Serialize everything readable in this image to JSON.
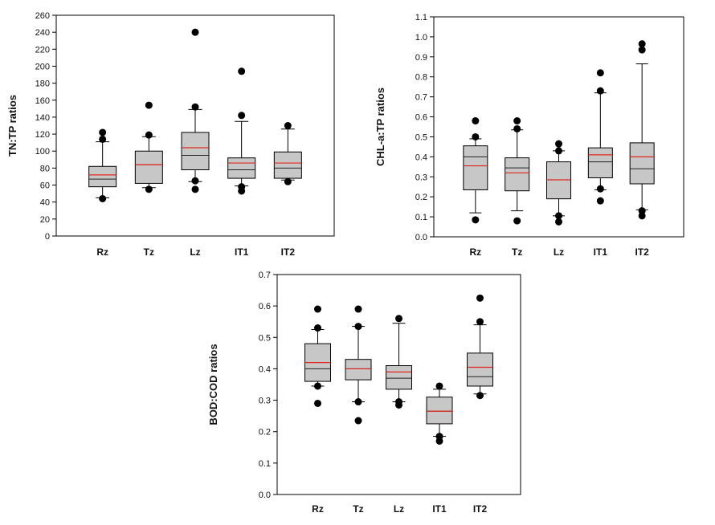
{
  "chart_data": [
    {
      "id": "tn_tp",
      "type": "box",
      "title": "",
      "xlabel": "",
      "ylabel": "TN:TP ratios",
      "ylim": [
        0,
        260
      ],
      "yticks": [
        0,
        20,
        40,
        60,
        80,
        100,
        120,
        140,
        160,
        180,
        200,
        220,
        240,
        260
      ],
      "tick_decimals": 0,
      "categories": [
        "Rz",
        "Tz",
        "Lz",
        "IT1",
        "IT2"
      ],
      "boxes": [
        {
          "q1": 58,
          "median": 67,
          "mean": 72,
          "q3": 82,
          "whisker_low": 45,
          "whisker_high": 111,
          "outliers": [
            44,
            114,
            122
          ]
        },
        {
          "q1": 62,
          "median": 84,
          "mean": 84,
          "q3": 100,
          "whisker_low": 57,
          "whisker_high": 117,
          "outliers": [
            55,
            119,
            154
          ]
        },
        {
          "q1": 78,
          "median": 95,
          "mean": 104,
          "q3": 122,
          "whisker_low": 64,
          "whisker_high": 149,
          "outliers": [
            55,
            65,
            152,
            240
          ]
        },
        {
          "q1": 68,
          "median": 78,
          "mean": 86,
          "q3": 92,
          "whisker_low": 59,
          "whisker_high": 135,
          "outliers": [
            53,
            58,
            142,
            194
          ]
        },
        {
          "q1": 68,
          "median": 80,
          "mean": 86,
          "q3": 99,
          "whisker_low": 66,
          "whisker_high": 126,
          "outliers": [
            64,
            130
          ]
        }
      ]
    },
    {
      "id": "chla_tp",
      "type": "box",
      "title": "",
      "xlabel": "",
      "ylabel": "CHL-a:TP ratios",
      "ylim": [
        0,
        1.1
      ],
      "yticks": [
        0.0,
        0.1,
        0.2,
        0.3,
        0.4,
        0.5,
        0.6,
        0.7,
        0.8,
        0.9,
        1.0,
        1.1
      ],
      "tick_decimals": 1,
      "categories": [
        "Rz",
        "Tz",
        "Lz",
        "IT1",
        "IT2"
      ],
      "boxes": [
        {
          "q1": 0.235,
          "median": 0.4,
          "mean": 0.355,
          "q3": 0.455,
          "whisker_low": 0.12,
          "whisker_high": 0.49,
          "outliers": [
            0.085,
            0.5,
            0.58
          ]
        },
        {
          "q1": 0.23,
          "median": 0.345,
          "mean": 0.32,
          "q3": 0.395,
          "whisker_low": 0.13,
          "whisker_high": 0.535,
          "outliers": [
            0.08,
            0.54,
            0.58
          ]
        },
        {
          "q1": 0.19,
          "median": 0.285,
          "mean": 0.285,
          "q3": 0.375,
          "whisker_low": 0.105,
          "whisker_high": 0.43,
          "outliers": [
            0.075,
            0.105,
            0.43,
            0.465
          ]
        },
        {
          "q1": 0.295,
          "median": 0.375,
          "mean": 0.41,
          "q3": 0.445,
          "whisker_low": 0.235,
          "whisker_high": 0.72,
          "outliers": [
            0.18,
            0.24,
            0.73,
            0.82
          ]
        },
        {
          "q1": 0.265,
          "median": 0.34,
          "mean": 0.4,
          "q3": 0.47,
          "whisker_low": 0.135,
          "whisker_high": 0.865,
          "outliers": [
            0.105,
            0.13,
            0.935,
            0.965
          ]
        }
      ]
    },
    {
      "id": "bod_cod",
      "type": "box",
      "title": "",
      "xlabel": "",
      "ylabel": "BOD:COD ratios",
      "ylim": [
        0,
        0.7
      ],
      "yticks": [
        0.0,
        0.1,
        0.2,
        0.3,
        0.4,
        0.5,
        0.6,
        0.7
      ],
      "tick_decimals": 1,
      "categories": [
        "Rz",
        "Tz",
        "Lz",
        "IT1",
        "IT2"
      ],
      "boxes": [
        {
          "q1": 0.36,
          "median": 0.4,
          "mean": 0.42,
          "q3": 0.48,
          "whisker_low": 0.345,
          "whisker_high": 0.525,
          "outliers": [
            0.29,
            0.345,
            0.53,
            0.59
          ]
        },
        {
          "q1": 0.365,
          "median": 0.4,
          "mean": 0.4,
          "q3": 0.43,
          "whisker_low": 0.295,
          "whisker_high": 0.535,
          "outliers": [
            0.235,
            0.295,
            0.535,
            0.59
          ]
        },
        {
          "q1": 0.335,
          "median": 0.37,
          "mean": 0.39,
          "q3": 0.41,
          "whisker_low": 0.295,
          "whisker_high": 0.545,
          "outliers": [
            0.285,
            0.295,
            0.56
          ]
        },
        {
          "q1": 0.225,
          "median": 0.265,
          "mean": 0.265,
          "q3": 0.31,
          "whisker_low": 0.185,
          "whisker_high": 0.335,
          "outliers": [
            0.17,
            0.185,
            0.345
          ]
        },
        {
          "q1": 0.345,
          "median": 0.375,
          "mean": 0.405,
          "q3": 0.45,
          "whisker_low": 0.32,
          "whisker_high": 0.54,
          "outliers": [
            0.315,
            0.55,
            0.625
          ]
        }
      ]
    }
  ],
  "colors": {
    "box_fill": "#c7c7c7",
    "mean_line": "#e0261c",
    "median_line": "#222222",
    "axis": "#000000",
    "outlier": "#000000"
  }
}
